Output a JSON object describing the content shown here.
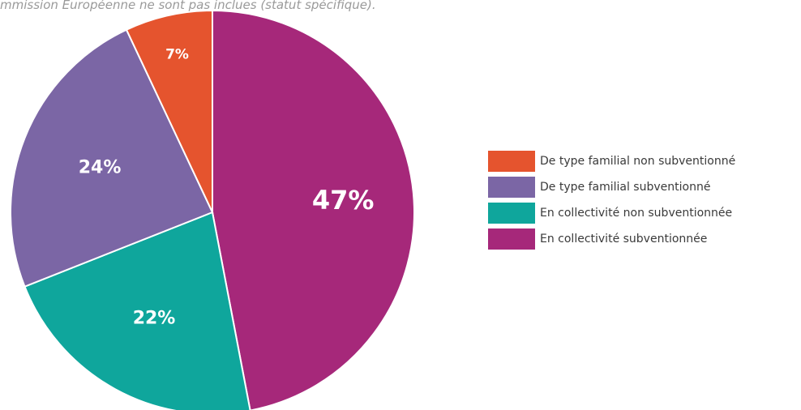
{
  "note": "mmission Européenne ne sont pas inclues (statut spécifique).",
  "chart_data": {
    "type": "pie",
    "start_angle_deg": 0,
    "direction": "clockwise",
    "slices": [
      {
        "label": "En collectivité subventionnée",
        "value": 47,
        "display": "47%",
        "color": "#a6287a"
      },
      {
        "label": "En collectivité non subventionnée",
        "value": 22,
        "display": "22%",
        "color": "#0fa69c"
      },
      {
        "label": "De type familial subventionné",
        "value": 24,
        "display": "24%",
        "color": "#7b66a5"
      },
      {
        "label": "De type familial non subventionné",
        "value": 7,
        "display": "7%",
        "color": "#e5542e"
      }
    ],
    "legend": {
      "placement": "right",
      "entries": [
        {
          "label": "De type familial non subventionné",
          "color": "#e5542e"
        },
        {
          "label": "De type familial subventionné",
          "color": "#7b66a5"
        },
        {
          "label": "En collectivité non subventionnée",
          "color": "#0fa69c"
        },
        {
          "label": "En collectivité subventionnée",
          "color": "#a6287a"
        }
      ]
    }
  }
}
